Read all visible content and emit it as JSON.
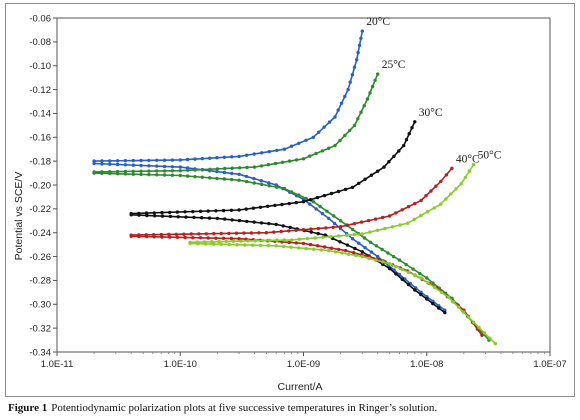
{
  "caption": {
    "label": "Figure 1",
    "text": "Potentiodynamic polarization plots at five successive temperatures in Ringer’s solution."
  },
  "chart_data": {
    "type": "line",
    "title": "",
    "xlabel": "Current/A",
    "ylabel": "Potential vs SCE/V",
    "x_scale": "log",
    "xlim": [
      1e-11,
      1e-07
    ],
    "ylim": [
      -0.34,
      -0.06
    ],
    "x_ticks": [
      "1.0E-11",
      "1.0E-10",
      "1.0E-09",
      "1.0E-08",
      "1.0E-07"
    ],
    "y_ticks": [
      "-0.06",
      "-0.08",
      "-0.10",
      "-0.12",
      "-0.14",
      "-0.16",
      "-0.18",
      "-0.20",
      "-0.22",
      "-0.24",
      "-0.26",
      "-0.28",
      "-0.30",
      "-0.32",
      "-0.34"
    ],
    "grid": false,
    "legend": "labels at curve ends",
    "series": [
      {
        "name": "20°C",
        "color": "#2a5fc8",
        "anodic": [
          [
            2e-11,
            -0.18
          ],
          [
            1e-10,
            -0.179
          ],
          [
            3e-10,
            -0.176
          ],
          [
            7e-10,
            -0.17
          ],
          [
            1.2e-09,
            -0.16
          ],
          [
            1.8e-09,
            -0.143
          ],
          [
            2.3e-09,
            -0.12
          ],
          [
            2.7e-09,
            -0.095
          ],
          [
            3e-09,
            -0.071
          ]
        ],
        "cathodic": [
          [
            2e-11,
            -0.182
          ],
          [
            1e-10,
            -0.185
          ],
          [
            3e-10,
            -0.191
          ],
          [
            6e-10,
            -0.2
          ],
          [
            1e-09,
            -0.212
          ],
          [
            1.6e-09,
            -0.228
          ],
          [
            2.5e-09,
            -0.245
          ],
          [
            4e-09,
            -0.26
          ],
          [
            6e-09,
            -0.275
          ],
          [
            9e-09,
            -0.29
          ],
          [
            1.4e-08,
            -0.305
          ]
        ]
      },
      {
        "name": "25°C",
        "color": "#2f8a2f",
        "anodic": [
          [
            2e-11,
            -0.189
          ],
          [
            1e-10,
            -0.188
          ],
          [
            4e-10,
            -0.185
          ],
          [
            1e-09,
            -0.178
          ],
          [
            1.8e-09,
            -0.167
          ],
          [
            2.6e-09,
            -0.15
          ],
          [
            3.3e-09,
            -0.128
          ],
          [
            4e-09,
            -0.107
          ]
        ],
        "cathodic": [
          [
            2e-11,
            -0.19
          ],
          [
            1e-10,
            -0.192
          ],
          [
            3e-10,
            -0.196
          ],
          [
            7e-10,
            -0.203
          ],
          [
            1.2e-09,
            -0.214
          ],
          [
            2e-09,
            -0.23
          ],
          [
            3.5e-09,
            -0.248
          ],
          [
            6e-09,
            -0.263
          ],
          [
            1e-08,
            -0.278
          ],
          [
            1.6e-08,
            -0.295
          ],
          [
            2.6e-08,
            -0.32
          ],
          [
            3.2e-08,
            -0.33
          ]
        ]
      },
      {
        "name": "30°C",
        "color": "#111111",
        "anodic": [
          [
            4e-11,
            -0.224
          ],
          [
            3e-10,
            -0.221
          ],
          [
            1e-09,
            -0.214
          ],
          [
            2.5e-09,
            -0.202
          ],
          [
            4.5e-09,
            -0.185
          ],
          [
            6.5e-09,
            -0.167
          ],
          [
            8e-09,
            -0.147
          ]
        ],
        "cathodic": [
          [
            4e-11,
            -0.225
          ],
          [
            2e-10,
            -0.228
          ],
          [
            6e-10,
            -0.233
          ],
          [
            1.5e-09,
            -0.242
          ],
          [
            3e-09,
            -0.256
          ],
          [
            5e-09,
            -0.27
          ],
          [
            8e-09,
            -0.288
          ],
          [
            1.4e-08,
            -0.307
          ]
        ]
      },
      {
        "name": "40°C",
        "color": "#b32323",
        "anodic": [
          [
            4e-11,
            -0.242
          ],
          [
            5e-10,
            -0.24
          ],
          [
            2e-09,
            -0.235
          ],
          [
            5e-09,
            -0.226
          ],
          [
            9e-09,
            -0.213
          ],
          [
            1.3e-08,
            -0.197
          ],
          [
            1.6e-08,
            -0.186
          ]
        ],
        "cathodic": [
          [
            4e-11,
            -0.243
          ],
          [
            3e-10,
            -0.245
          ],
          [
            1e-09,
            -0.249
          ],
          [
            2.2e-09,
            -0.255
          ],
          [
            4e-09,
            -0.262
          ],
          [
            7e-09,
            -0.272
          ],
          [
            1.2e-08,
            -0.286
          ],
          [
            2e-08,
            -0.305
          ],
          [
            2.8e-08,
            -0.326
          ]
        ]
      },
      {
        "name": "50°C",
        "color": "#8acc2e",
        "anodic": [
          [
            1.2e-10,
            -0.248
          ],
          [
            8e-10,
            -0.246
          ],
          [
            3e-09,
            -0.241
          ],
          [
            7e-09,
            -0.232
          ],
          [
            1.3e-08,
            -0.216
          ],
          [
            1.9e-08,
            -0.199
          ],
          [
            2.4e-08,
            -0.183
          ]
        ],
        "cathodic": [
          [
            1.2e-10,
            -0.249
          ],
          [
            6e-10,
            -0.251
          ],
          [
            1.6e-09,
            -0.255
          ],
          [
            3e-09,
            -0.26
          ],
          [
            5e-09,
            -0.266
          ],
          [
            9e-09,
            -0.278
          ],
          [
            1.5e-08,
            -0.294
          ],
          [
            2.4e-08,
            -0.315
          ],
          [
            3.6e-08,
            -0.333
          ]
        ]
      }
    ]
  }
}
